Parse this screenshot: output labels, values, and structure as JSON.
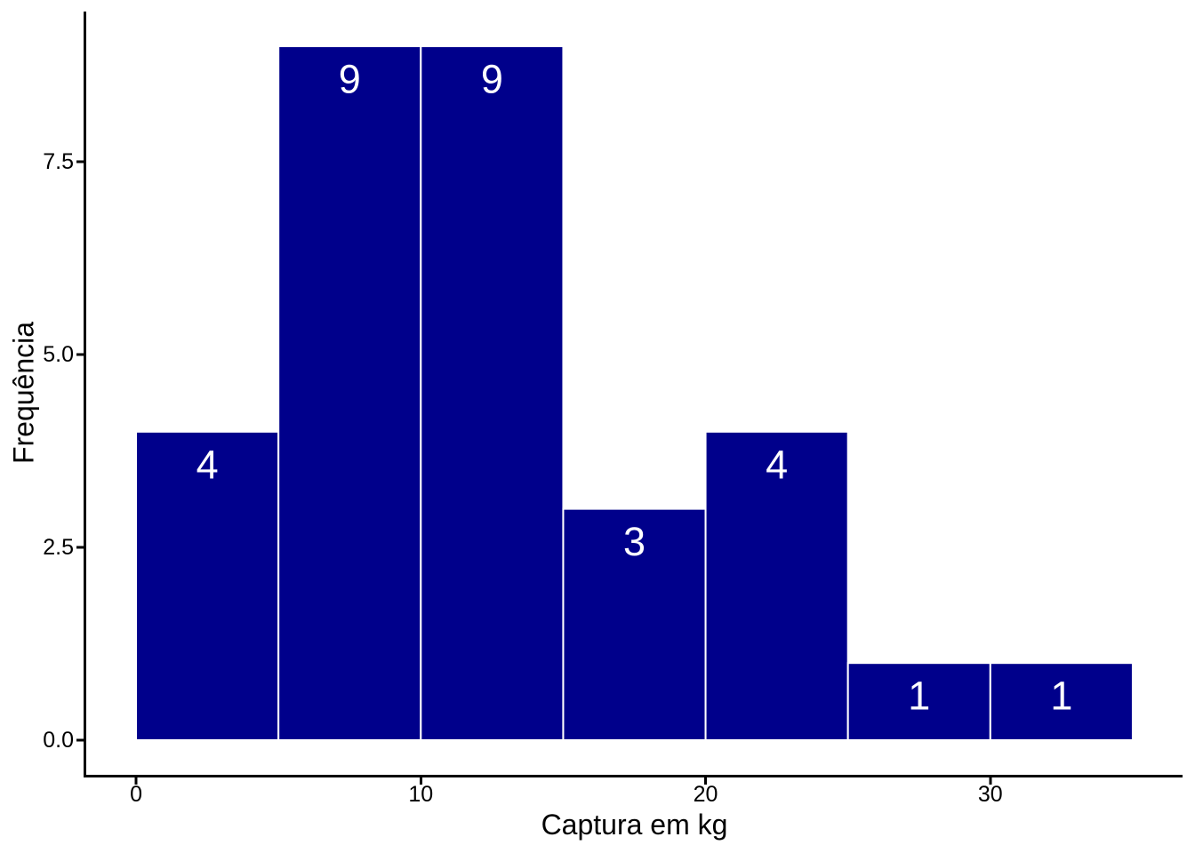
{
  "figure": {
    "background": "#ffffff"
  },
  "chart_data": {
    "type": "bar",
    "subtype": "histogram",
    "title": "",
    "xlabel": "Captura em kg",
    "ylabel": "Frequência",
    "bin_width": 5,
    "bin_starts": [
      0,
      5,
      10,
      15,
      20,
      25,
      30
    ],
    "values": [
      4,
      9,
      9,
      3,
      4,
      1,
      1
    ],
    "bar_labels": [
      "4",
      "9",
      "9",
      "3",
      "4",
      "1",
      "1"
    ],
    "x_ticks": [
      0,
      10,
      20,
      30
    ],
    "x_tick_labels": [
      "0",
      "10",
      "20",
      "30"
    ],
    "y_ticks": [
      0,
      2.5,
      5,
      7.5
    ],
    "y_tick_labels": [
      "0.0",
      "2.5",
      "5.0",
      "7.5"
    ],
    "xlim": [
      -1.75,
      36.75
    ],
    "ylim": [
      -0.45,
      9.45
    ],
    "grid": false,
    "legend_position": "none",
    "bar_fill": "#00008B",
    "bar_stroke": "#FFFFFF",
    "label_color": "#FFFFFF",
    "axis_color": "#000000",
    "tick_label_color": "#000000"
  }
}
